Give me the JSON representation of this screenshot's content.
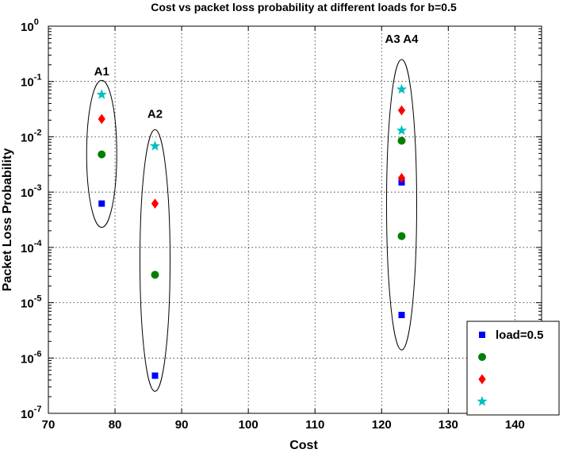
{
  "chart_data": {
    "type": "scatter",
    "title": "Cost vs packet loss probability at different loads for b=0.5",
    "xlabel": "Cost",
    "ylabel": "Packet Loss Probability",
    "xlim": [
      70,
      144
    ],
    "ylim": [
      1e-07,
      1
    ],
    "xticks": [
      70,
      80,
      90,
      100,
      110,
      120,
      130,
      140
    ],
    "yscale": "log",
    "yticks": [
      {
        "value": 1e-07,
        "mantissa": "10",
        "exp": "-7"
      },
      {
        "value": 1e-06,
        "mantissa": "10",
        "exp": "-6"
      },
      {
        "value": 1e-05,
        "mantissa": "10",
        "exp": "-5"
      },
      {
        "value": 0.0001,
        "mantissa": "10",
        "exp": "-4"
      },
      {
        "value": 0.001,
        "mantissa": "10",
        "exp": "-3"
      },
      {
        "value": 0.01,
        "mantissa": "10",
        "exp": "-2"
      },
      {
        "value": 0.1,
        "mantissa": "10",
        "exp": "-1"
      },
      {
        "value": 1,
        "mantissa": "10",
        "exp": "0"
      }
    ],
    "grid": true,
    "legend_position": "bottom-right",
    "series": [
      {
        "name": "load=0.5",
        "marker": "square",
        "color": "#0000ff",
        "points": [
          [
            78,
            0.00062
          ],
          [
            86,
            4.8e-07
          ],
          [
            123,
            0.0015
          ],
          [
            123,
            6e-06
          ]
        ]
      },
      {
        "name": "",
        "marker": "circle",
        "color": "#008000",
        "points": [
          [
            78,
            0.0048
          ],
          [
            86,
            3.2e-05
          ],
          [
            123,
            0.0085
          ],
          [
            123,
            0.00016
          ]
        ]
      },
      {
        "name": "",
        "marker": "diamond",
        "color": "#ff0000",
        "points": [
          [
            78,
            0.021
          ],
          [
            86,
            0.00062
          ],
          [
            123,
            0.03
          ],
          [
            123,
            0.0018
          ]
        ]
      },
      {
        "name": "",
        "marker": "star",
        "color": "#00bfbf",
        "points": [
          [
            78,
            0.058
          ],
          [
            86,
            0.0068
          ],
          [
            123,
            0.072
          ],
          [
            123,
            0.013
          ]
        ]
      }
    ],
    "annotations": [
      {
        "text": "A1",
        "x": 78,
        "y": 0.13
      },
      {
        "text": "A2",
        "x": 86,
        "y": 0.022
      },
      {
        "text": "A3 A4",
        "x": 123,
        "y": 0.5
      }
    ],
    "groups": [
      {
        "x": 78,
        "ymin": 0.00023,
        "ymax": 0.105
      },
      {
        "x": 86,
        "ymin": 2.5e-07,
        "ymax": 0.0135
      },
      {
        "x": 123,
        "ymin": 1.4e-06,
        "ymax": 0.25
      }
    ]
  }
}
